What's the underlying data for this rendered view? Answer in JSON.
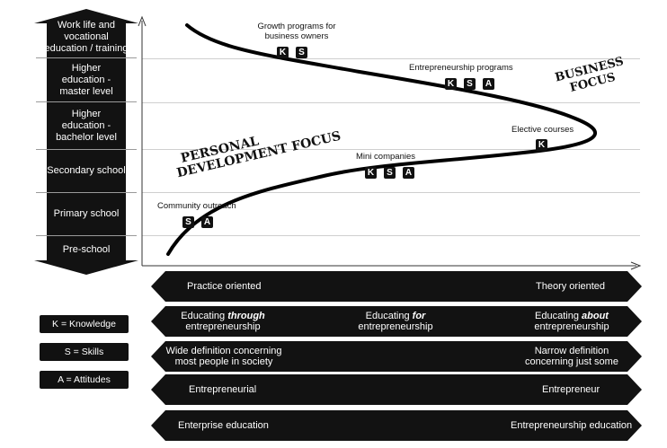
{
  "levels": [
    {
      "label": "Work life and vocational education / training"
    },
    {
      "label": "Higher education - master level"
    },
    {
      "label": "Higher education - bachelor level"
    },
    {
      "label": "Secondary school"
    },
    {
      "label": "Primary school"
    },
    {
      "label": "Pre-school"
    }
  ],
  "programs": {
    "growth": {
      "label": "Growth programs for business owners",
      "badges": [
        "K",
        "S"
      ]
    },
    "entrepreneurship": {
      "label": "Entrepreneurship programs",
      "badges": [
        "K",
        "S",
        "A"
      ]
    },
    "elective": {
      "label": "Elective courses",
      "badges": [
        "K"
      ]
    },
    "mini": {
      "label": "Mini companies",
      "badges": [
        "K",
        "S",
        "A"
      ]
    },
    "community": {
      "label": "Community outreach",
      "badges": [
        "S",
        "A"
      ]
    }
  },
  "focus": {
    "personal_line1": "PERSONAL",
    "personal_line2": "DEVELOPMENT FOCUS",
    "business_line1": "BUSINESS",
    "business_line2": "FOCUS"
  },
  "bars": [
    {
      "left": "Practice oriented",
      "middle": "",
      "right": "Theory oriented"
    },
    {
      "left_prefix": "Educating ",
      "left_em": "through",
      "left_suffix": "entrepreneurship",
      "mid_prefix": "Educating ",
      "mid_em": "for",
      "mid_suffix": "entrepreneurship",
      "right_prefix": "Educating ",
      "right_em": "about",
      "right_suffix": "entrepreneurship"
    },
    {
      "left_l1": "Wide definition concerning",
      "left_l2": "most people in society",
      "right_l1": "Narrow definition",
      "right_l2": "concerning just some"
    },
    {
      "left": "Entrepreneurial",
      "right": "Entrepreneur"
    },
    {
      "left": "Enterprise education",
      "right": "Entrepreneurship education"
    }
  ],
  "legend": {
    "knowledge": "K = Knowledge",
    "skills": "S = Skills",
    "attitudes": "A = Attitudes"
  }
}
